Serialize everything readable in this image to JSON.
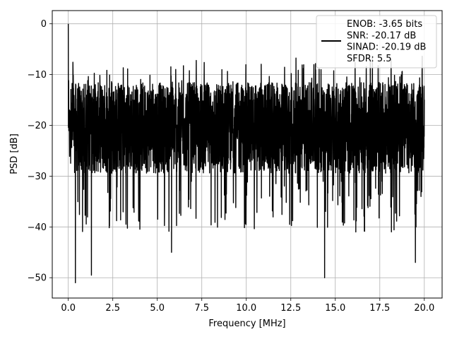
{
  "chart_data": {
    "type": "line",
    "xlabel": "Frequency [MHz]",
    "ylabel": "PSD [dB]",
    "xlim": [
      -0.9,
      21.0
    ],
    "ylim": [
      -54.0,
      2.6
    ],
    "xticks": [
      0.0,
      2.5,
      5.0,
      7.5,
      10.0,
      12.5,
      15.0,
      17.5,
      20.0
    ],
    "xtick_labels": [
      "0.0",
      "2.5",
      "5.0",
      "7.5",
      "10.0",
      "12.5",
      "15.0",
      "17.5",
      "20.0"
    ],
    "yticks": [
      0,
      -10,
      -20,
      -30,
      -40,
      -50
    ],
    "ytick_labels": [
      "0",
      "−10",
      "−20",
      "−30",
      "−40",
      "−50"
    ],
    "grid": true,
    "legend_position": "top-right",
    "series": [
      {
        "name": "ENOB: -3.65 bits\nSNR: -20.17 dB\nSINAD: -20.19 dB\nSFDR: 5.5",
        "color": "#000000",
        "x_range": [
          0.0,
          20.0
        ],
        "peak": {
          "x": 0.0,
          "y": 0.0
        },
        "band_upper_dB": -12,
        "band_lower_dB": -29,
        "notable_dips": [
          {
            "x": 0.4,
            "y": -51
          },
          {
            "x": 1.3,
            "y": -49.5
          },
          {
            "x": 5.8,
            "y": -45
          },
          {
            "x": 14.4,
            "y": -50
          },
          {
            "x": 19.5,
            "y": -47
          }
        ]
      }
    ]
  }
}
